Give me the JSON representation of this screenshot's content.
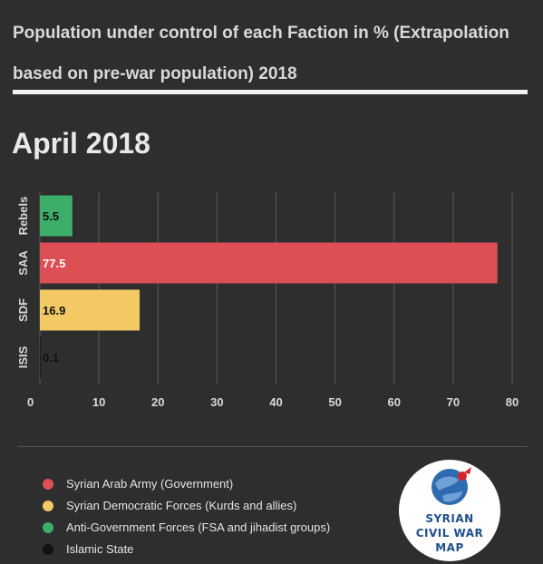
{
  "header": {
    "title": "Population under control of each Faction in % (Extrapolation based on pre-war population) 2018"
  },
  "period": "April 2018",
  "chart_data": {
    "type": "bar",
    "orientation": "horizontal",
    "categories": [
      "Rebels",
      "SAA",
      "SDF",
      "ISIS"
    ],
    "values": [
      5.5,
      77.5,
      16.9,
      0.1
    ],
    "value_labels": [
      "5.5",
      "77.5",
      "16.9",
      "0.1"
    ],
    "bar_colors": [
      "#3dae6a",
      "#dc4f55",
      "#f2c964",
      "#111111"
    ],
    "label_colors": [
      "#111111",
      "#ffffff",
      "#111111",
      "#111111"
    ],
    "xlim": [
      0,
      80
    ],
    "xticks": [
      0,
      10,
      20,
      30,
      40,
      50,
      60,
      70,
      80
    ],
    "grid": true,
    "legend_position": "bottom"
  },
  "legend": [
    {
      "label": "Syrian Arab Army (Government)",
      "color": "#dc4f55"
    },
    {
      "label": "Syrian Democratic Forces (Kurds and allies)",
      "color": "#f2c964"
    },
    {
      "label": "Anti-Government Forces (FSA and jihadist groups)",
      "color": "#3dae6a"
    },
    {
      "label": "Islamic State",
      "color": "#111111"
    }
  ],
  "logo": {
    "line1": "SYRIAN",
    "line2": "CIVIL WAR",
    "line3": "MAP"
  }
}
